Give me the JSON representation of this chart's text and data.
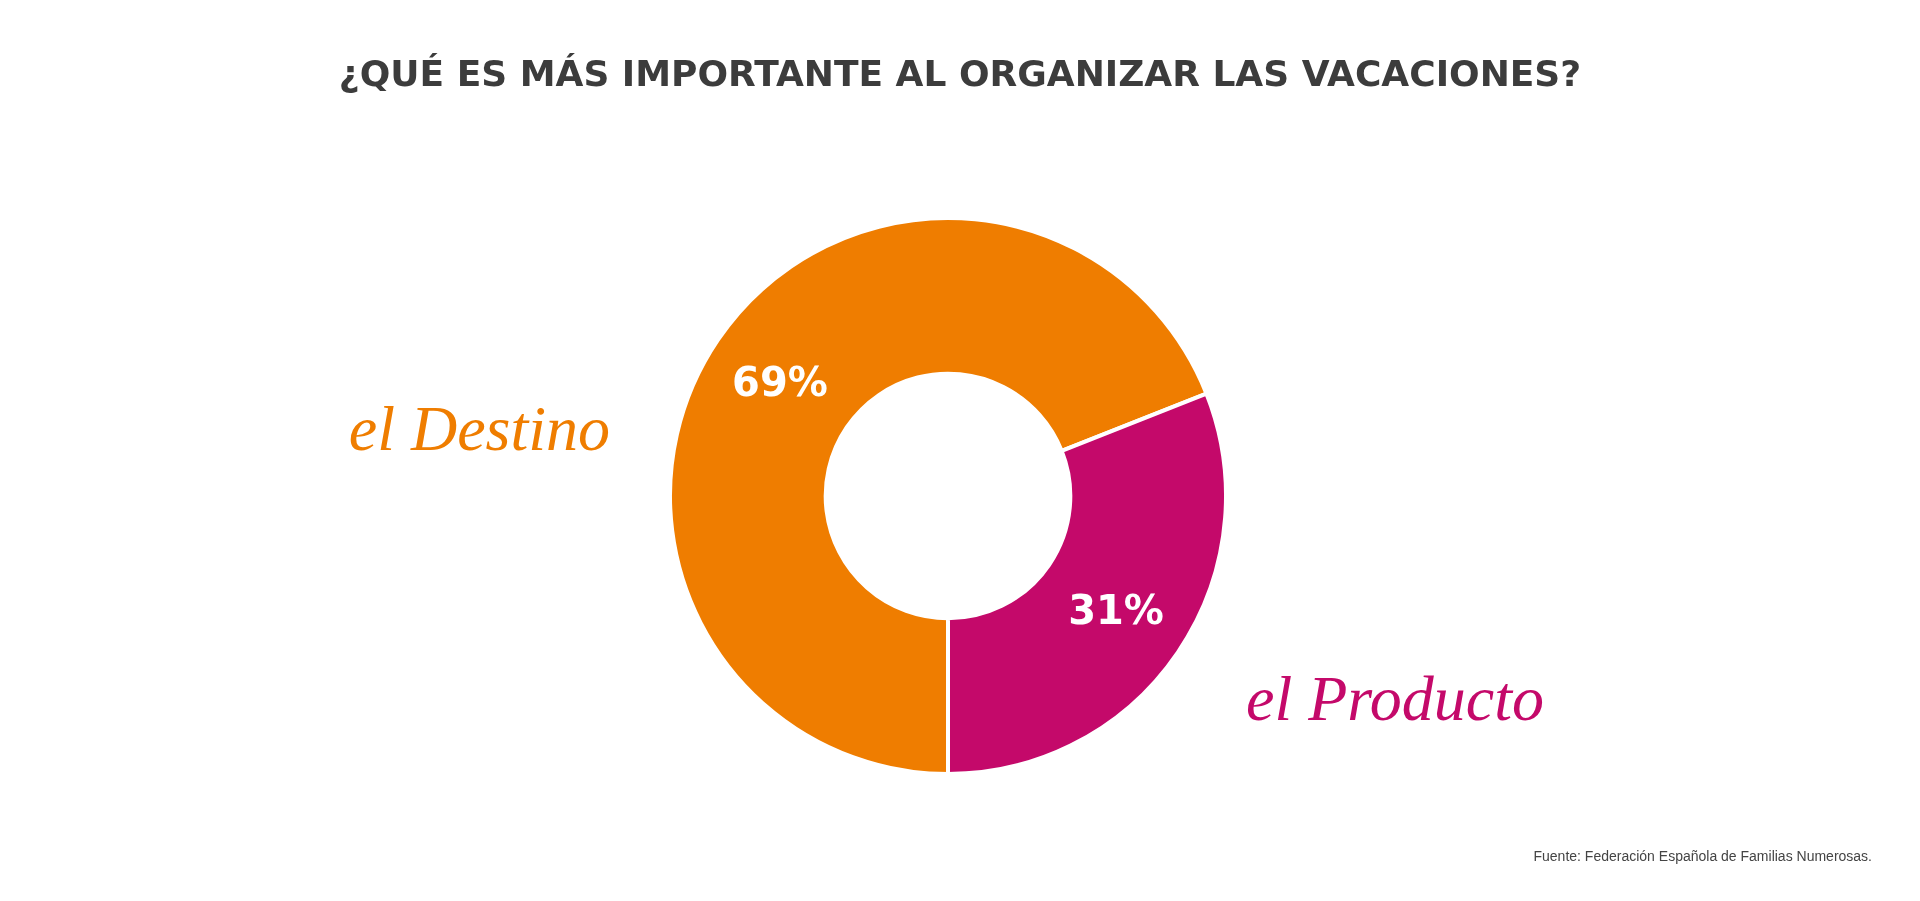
{
  "chart_data": {
    "type": "donut",
    "title": "¿QUÉ ES MÁS IMPORTANTE AL ORGANIZAR LAS VACACIONES?",
    "categories": [
      "el Destino",
      "el Producto"
    ],
    "values": [
      69,
      31
    ],
    "colors": [
      "#ef7d00",
      "#c4096a"
    ],
    "value_labels": [
      "69%",
      "31%"
    ],
    "legend": false,
    "annotations": [
      "Fuente: Federación Española de Familias Numerosas."
    ]
  }
}
